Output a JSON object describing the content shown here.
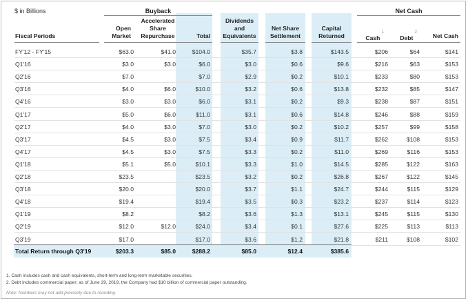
{
  "unit_label": "$ in Billions",
  "groups": {
    "buyback": "Buyback",
    "net_cash": "Net Cash"
  },
  "headers": {
    "fiscal_periods": "Fiscal Periods",
    "open_market": "Open Market",
    "accelerated": "Accelerated Share Repurchase",
    "buyback_total": "Total",
    "dividends": "Dividends and Equivalents",
    "net_share": "Net Share Settlement",
    "capital_returned": "Capital Returned",
    "cash": "Cash",
    "cash_note": "1",
    "debt": "Debt",
    "debt_note": "2",
    "net_cash": "Net Cash"
  },
  "rows": [
    {
      "period": "FY'12 - FY'15",
      "open": "$63.0",
      "asr": "$41.0",
      "total": "$104.0",
      "div": "$35.7",
      "nss": "$3.8",
      "cap": "$143.5",
      "cash": "$206",
      "debt": "$64",
      "net": "$141"
    },
    {
      "period": "Q1'16",
      "open": "$3.0",
      "asr": "$3.0",
      "total": "$6.0",
      "div": "$3.0",
      "nss": "$0.6",
      "cap": "$9.6",
      "cash": "$216",
      "debt": "$63",
      "net": "$153"
    },
    {
      "period": "Q2'16",
      "open": "$7.0",
      "asr": "",
      "total": "$7.0",
      "div": "$2.9",
      "nss": "$0.2",
      "cap": "$10.1",
      "cash": "$233",
      "debt": "$80",
      "net": "$153"
    },
    {
      "period": "Q3'16",
      "open": "$4.0",
      "asr": "$6.0",
      "total": "$10.0",
      "div": "$3.2",
      "nss": "$0.6",
      "cap": "$13.8",
      "cash": "$232",
      "debt": "$85",
      "net": "$147"
    },
    {
      "period": "Q4'16",
      "open": "$3.0",
      "asr": "$3.0",
      "total": "$6.0",
      "div": "$3.1",
      "nss": "$0.2",
      "cap": "$9.3",
      "cash": "$238",
      "debt": "$87",
      "net": "$151"
    },
    {
      "period": "Q1'17",
      "open": "$5.0",
      "asr": "$6.0",
      "total": "$11.0",
      "div": "$3.1",
      "nss": "$0.6",
      "cap": "$14.8",
      "cash": "$246",
      "debt": "$88",
      "net": "$159"
    },
    {
      "period": "Q2'17",
      "open": "$4.0",
      "asr": "$3.0",
      "total": "$7.0",
      "div": "$3.0",
      "nss": "$0.2",
      "cap": "$10.2",
      "cash": "$257",
      "debt": "$99",
      "net": "$158"
    },
    {
      "period": "Q3'17",
      "open": "$4.5",
      "asr": "$3.0",
      "total": "$7.5",
      "div": "$3.4",
      "nss": "$0.9",
      "cap": "$11.7",
      "cash": "$262",
      "debt": "$108",
      "net": "$153"
    },
    {
      "period": "Q4'17",
      "open": "$4.5",
      "asr": "$3.0",
      "total": "$7.5",
      "div": "$3.3",
      "nss": "$0.2",
      "cap": "$11.0",
      "cash": "$269",
      "debt": "$116",
      "net": "$153"
    },
    {
      "period": "Q1'18",
      "open": "$5.1",
      "asr": "$5.0",
      "total": "$10.1",
      "div": "$3.3",
      "nss": "$1.0",
      "cap": "$14.5",
      "cash": "$285",
      "debt": "$122",
      "net": "$163"
    },
    {
      "period": "Q2'18",
      "open": "$23.5",
      "asr": "",
      "total": "$23.5",
      "div": "$3.2",
      "nss": "$0.2",
      "cap": "$26.8",
      "cash": "$267",
      "debt": "$122",
      "net": "$145"
    },
    {
      "period": "Q3'18",
      "open": "$20.0",
      "asr": "",
      "total": "$20.0",
      "div": "$3.7",
      "nss": "$1.1",
      "cap": "$24.7",
      "cash": "$244",
      "debt": "$115",
      "net": "$129"
    },
    {
      "period": "Q4'18",
      "open": "$19.4",
      "asr": "",
      "total": "$19.4",
      "div": "$3.5",
      "nss": "$0.3",
      "cap": "$23.2",
      "cash": "$237",
      "debt": "$114",
      "net": "$123"
    },
    {
      "period": "Q1'19",
      "open": "$8.2",
      "asr": "",
      "total": "$8.2",
      "div": "$3.6",
      "nss": "$1.3",
      "cap": "$13.1",
      "cash": "$245",
      "debt": "$115",
      "net": "$130"
    },
    {
      "period": "Q2'19",
      "open": "$12.0",
      "asr": "$12.0",
      "total": "$24.0",
      "div": "$3.4",
      "nss": "$0.1",
      "cap": "$27.6",
      "cash": "$225",
      "debt": "$113",
      "net": "$113"
    },
    {
      "period": "Q3'19",
      "open": "$17.0",
      "asr": "",
      "total": "$17.0",
      "div": "$3.6",
      "nss": "$1.2",
      "cap": "$21.8",
      "cash": "$211",
      "debt": "$108",
      "net": "$102"
    }
  ],
  "total_row": {
    "period": "Total Return through Q3'19",
    "open": "$203.3",
    "asr": "$85.0",
    "total": "$288.2",
    "div": "$85.0",
    "nss": "$12.4",
    "cap": "$385.6"
  },
  "footnotes": [
    "1.  Cash includes cash and cash equivalents, short-term and long-term marketable securities.",
    "2.  Debt includes commercial paper; as of June 29, 2019, the Company had $10 billion of commercial paper outstanding."
  ],
  "note": "Note: Numbers may not add precisely due to rounding.",
  "colors": {
    "shade": "#dbeef7",
    "border": "#b9b9b9",
    "rule": "#8a8a8a"
  }
}
